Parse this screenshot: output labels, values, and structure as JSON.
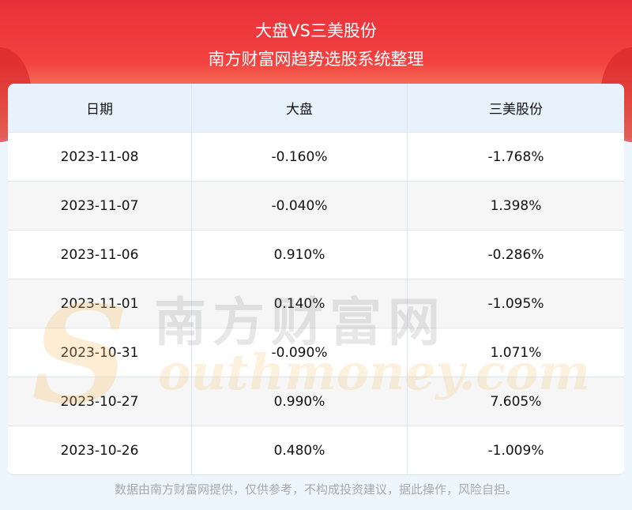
{
  "header": {
    "title": "大盘VS三美股份",
    "subtitle": "南方财富网趋势选股系统整理"
  },
  "table": {
    "columns": [
      "日期",
      "大盘",
      "三美股份"
    ],
    "rows": [
      [
        "2023-11-08",
        "-0.160%",
        "-1.768%"
      ],
      [
        "2023-11-07",
        "-0.040%",
        "1.398%"
      ],
      [
        "2023-11-06",
        "0.910%",
        "-0.286%"
      ],
      [
        "2023-11-01",
        "0.140%",
        "-1.095%"
      ],
      [
        "2023-10-31",
        "-0.090%",
        "1.071%"
      ],
      [
        "2023-10-27",
        "0.990%",
        "7.605%"
      ],
      [
        "2023-10-26",
        "0.480%",
        "-1.009%"
      ]
    ]
  },
  "watermark": {
    "cn": "南方财富网",
    "en": "outhmoney.com",
    "s": "S"
  },
  "footer": "数据由南方财富网提供，仅供参考，不构成投资建议，据此操作，风险自担。"
}
